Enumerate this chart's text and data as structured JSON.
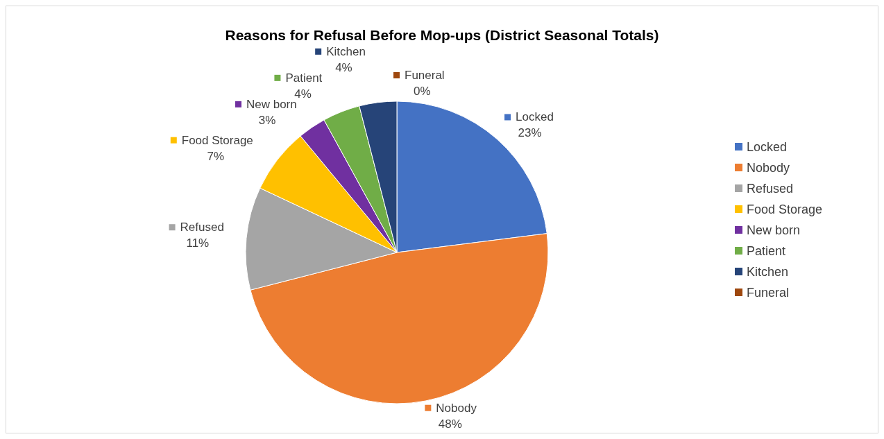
{
  "chart_data": {
    "type": "pie",
    "title": "Reasons for Refusal Before Mop-ups (District Seasonal Totals)",
    "categories": [
      "Locked",
      "Nobody",
      "Refused",
      "Food Storage",
      "New born",
      "Patient",
      "Kitchen",
      "Funeral"
    ],
    "values": [
      23,
      48,
      11,
      7,
      3,
      4,
      4,
      0
    ],
    "value_labels": [
      "23%",
      "48%",
      "11%",
      "7%",
      "3%",
      "4%",
      "4%",
      "0%"
    ],
    "colors": [
      "#4472c4",
      "#ed7d31",
      "#a5a5a5",
      "#ffc000",
      "#7030a0",
      "#70ad47",
      "#264478",
      "#9e480e"
    ],
    "legend": "right"
  }
}
